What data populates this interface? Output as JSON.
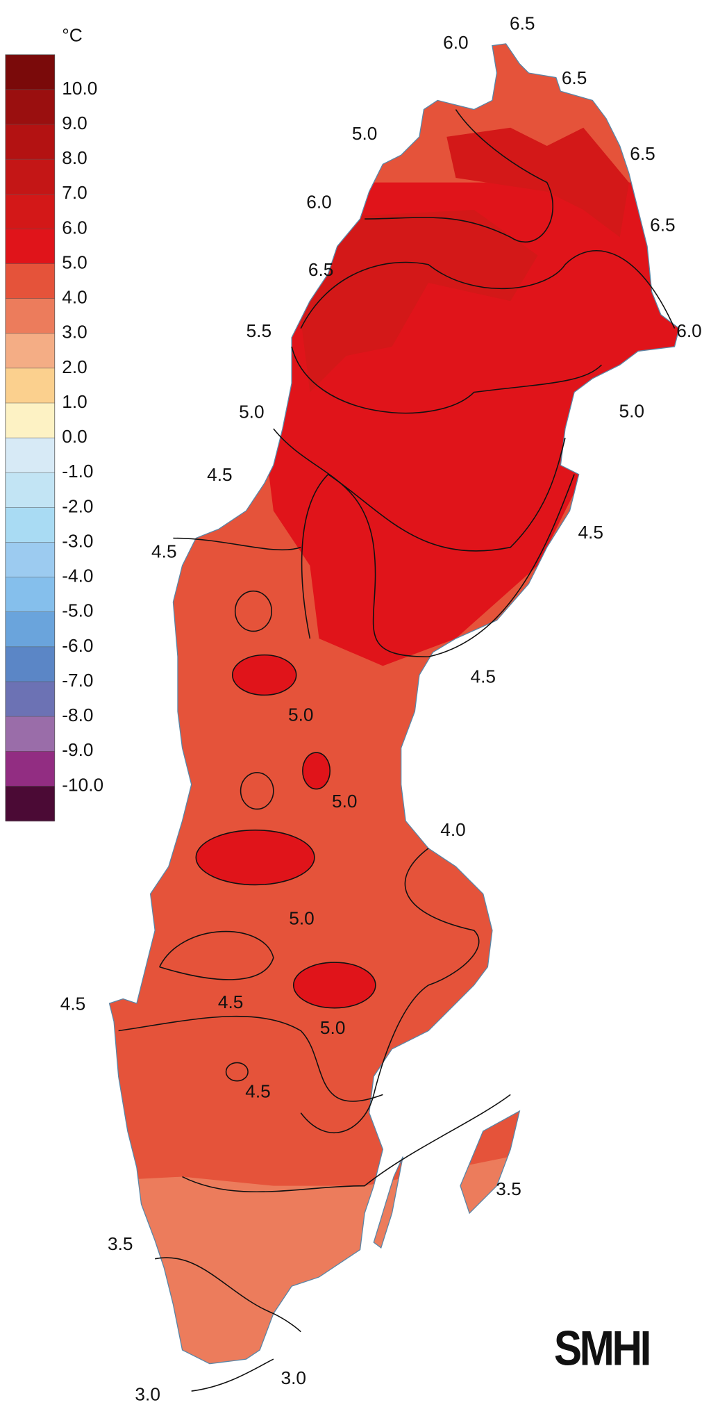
{
  "legend": {
    "unit": "°C",
    "labels": [
      "10.0",
      "9.0",
      "8.0",
      "7.0",
      "6.0",
      "5.0",
      "4.0",
      "3.0",
      "2.0",
      "1.0",
      "0.0",
      "-1.0",
      "-2.0",
      "-3.0",
      "-4.0",
      "-5.0",
      "-6.0",
      "-7.0",
      "-8.0",
      "-9.0",
      "-10.0"
    ],
    "colors": [
      "#7a0a0a",
      "#9a0f0f",
      "#b31212",
      "#c41616",
      "#d31818",
      "#e0141a",
      "#e5533a",
      "#ec7c5c",
      "#f4ad85",
      "#fbd08e",
      "#fdf2c4",
      "#d7eaf6",
      "#c2e4f4",
      "#a9dbf3",
      "#9ccbf0",
      "#85bfec",
      "#6aa4dc",
      "#5b86c6",
      "#6c72b4",
      "#9a6da9",
      "#922d82",
      "#4b0a35"
    ]
  },
  "contour_labels": [
    "6.5",
    "6.0",
    "6.5",
    "5.0",
    "6.5",
    "6.0",
    "6.5",
    "6.5",
    "5.5",
    "6.0",
    "5.0",
    "5.0",
    "4.5",
    "4.5",
    "4.5",
    "4.5",
    "5.0",
    "5.0",
    "4.0",
    "5.0",
    "4.5",
    "4.5",
    "5.0",
    "4.5",
    "3.5",
    "3.5",
    "3.0",
    "3.0"
  ],
  "logo": "SMHI"
}
